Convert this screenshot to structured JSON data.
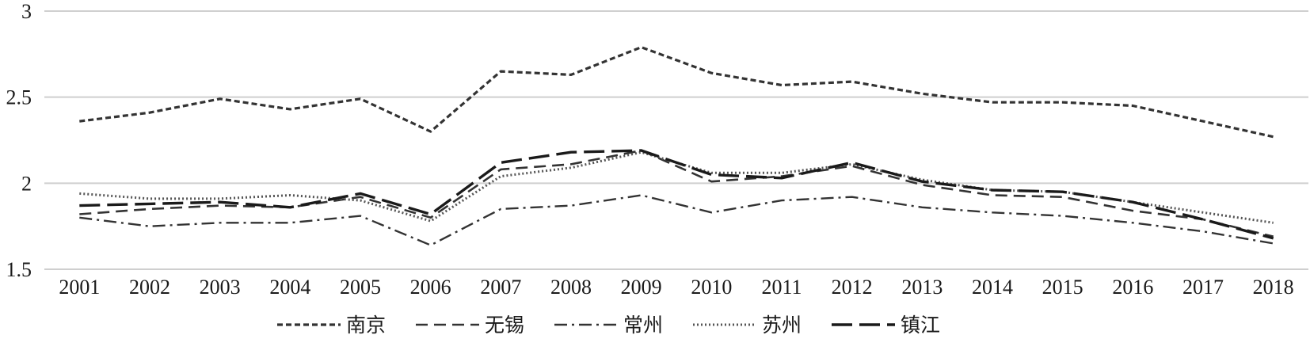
{
  "chart_data": {
    "type": "line",
    "title": "",
    "xlabel": "",
    "ylabel": "",
    "ylim": [
      1.5,
      3
    ],
    "yticks": [
      "1.5",
      "2",
      "2.5",
      "3"
    ],
    "grid": "horizontal",
    "legend_position": "bottom",
    "categories": [
      "2001",
      "2002",
      "2003",
      "2004",
      "2005",
      "2006",
      "2007",
      "2008",
      "2009",
      "2010",
      "2011",
      "2012",
      "2013",
      "2014",
      "2015",
      "2016",
      "2017",
      "2018"
    ],
    "series": [
      {
        "name": "南京",
        "dash": "short-dash",
        "color": "#333333",
        "values": [
          2.36,
          2.41,
          2.49,
          2.43,
          2.49,
          2.3,
          2.65,
          2.63,
          2.79,
          2.64,
          2.57,
          2.59,
          2.52,
          2.47,
          2.47,
          2.45,
          2.36,
          2.27
        ]
      },
      {
        "name": "无锡",
        "dash": "medium-dash",
        "color": "#333333",
        "values": [
          1.82,
          1.85,
          1.87,
          1.86,
          1.92,
          1.8,
          2.08,
          2.11,
          2.19,
          2.01,
          2.04,
          2.1,
          1.99,
          1.93,
          1.92,
          1.84,
          1.79,
          1.69
        ]
      },
      {
        "name": "常州",
        "dash": "dash-dot",
        "color": "#333333",
        "values": [
          1.8,
          1.75,
          1.77,
          1.77,
          1.81,
          1.64,
          1.85,
          1.87,
          1.93,
          1.83,
          1.9,
          1.92,
          1.86,
          1.83,
          1.81,
          1.77,
          1.72,
          1.65
        ]
      },
      {
        "name": "苏州",
        "dash": "dotted",
        "color": "#555555",
        "values": [
          1.94,
          1.91,
          1.91,
          1.93,
          1.9,
          1.78,
          2.04,
          2.09,
          2.18,
          2.06,
          2.06,
          2.11,
          2.02,
          1.96,
          1.95,
          1.89,
          1.83,
          1.77
        ]
      },
      {
        "name": "镇江",
        "dash": "long-dash",
        "color": "#1a1a1a",
        "values": [
          1.87,
          1.88,
          1.89,
          1.86,
          1.94,
          1.82,
          2.12,
          2.18,
          2.19,
          2.05,
          2.03,
          2.12,
          2.01,
          1.96,
          1.95,
          1.89,
          1.79,
          1.68
        ]
      }
    ]
  }
}
